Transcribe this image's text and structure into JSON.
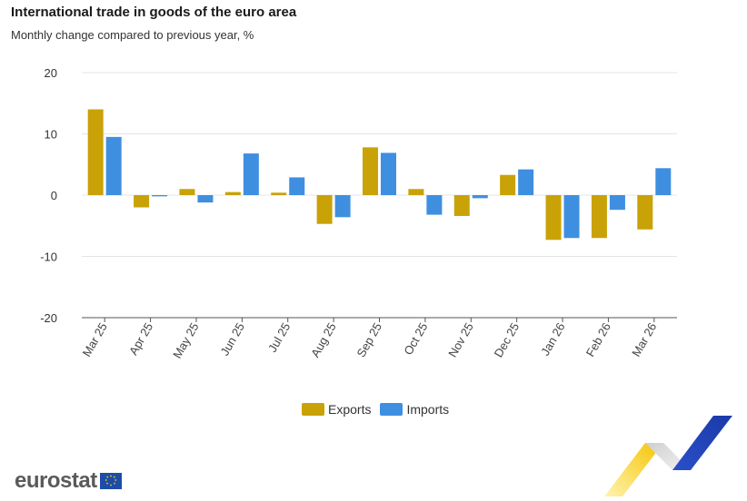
{
  "header": {
    "title": "International trade in goods of the euro area",
    "subtitle": "Monthly change compared to previous year, %"
  },
  "colors": {
    "exports": "#c9a207",
    "imports": "#3f8fe0",
    "grid": "#e4e4e4",
    "axis": "#555555"
  },
  "legend": {
    "exports_label": "Exports",
    "imports_label": "Imports"
  },
  "logo": {
    "text": "eurostat",
    "flag_icon": "eu-flag-icon"
  },
  "decoration": {
    "icon": "eurostat-chevron-icon"
  },
  "chart_data": {
    "type": "bar",
    "categories": [
      "Mar 25",
      "Apr 25",
      "May 25",
      "Jun 25",
      "Jul 25",
      "Aug 25",
      "Sep 25",
      "Oct 25",
      "Nov 25",
      "Dec 25",
      "Jan 26",
      "Feb 26",
      "Mar 26"
    ],
    "series": [
      {
        "name": "Exports",
        "values": [
          14.0,
          -2.0,
          1.0,
          0.5,
          0.4,
          -4.7,
          7.8,
          1.0,
          -3.4,
          3.3,
          -7.3,
          -7.0,
          -5.6
        ]
      },
      {
        "name": "Imports",
        "values": [
          9.5,
          -0.2,
          -1.2,
          6.8,
          2.9,
          -3.6,
          6.9,
          -3.2,
          -0.5,
          4.2,
          -7.0,
          -2.4,
          4.4
        ]
      }
    ],
    "yticks": [
      -20,
      -10,
      0,
      10,
      20
    ],
    "ylim": [
      -20,
      20
    ],
    "grid": true,
    "legend_position": "bottom"
  }
}
